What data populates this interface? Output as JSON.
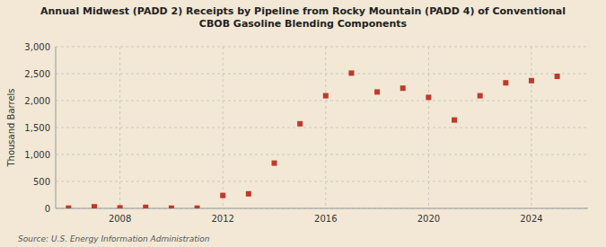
{
  "chart_data": {
    "type": "scatter",
    "title": "Annual Midwest (PADD 2) Receipts by Pipeline from Rocky Mountain (PADD 4) of Conventional\nCBOB Gasoline Blending Components",
    "ylabel": "Thousand Barrels",
    "source": "Source: U.S. Energy Information Administration",
    "x": [
      2006,
      2007,
      2008,
      2009,
      2010,
      2011,
      2012,
      2013,
      2014,
      2015,
      2016,
      2017,
      2018,
      2019,
      2020,
      2021,
      2022,
      2023,
      2024,
      2025
    ],
    "values": [
      5,
      30,
      10,
      20,
      5,
      5,
      240,
      270,
      840,
      1570,
      2090,
      2510,
      2160,
      2230,
      2060,
      1640,
      2090,
      2330,
      2370,
      2450
    ],
    "color": "#c0392b",
    "marker": "square",
    "xlim": [
      2005.5,
      2026.2
    ],
    "xticks": [
      2008,
      2012,
      2016,
      2020,
      2024
    ],
    "ylim": [
      0,
      3000
    ],
    "yticks": [
      0,
      500,
      {
        "value": 1000,
        "label": "1,000"
      },
      {
        "value": 1500,
        "label": "1,500"
      },
      {
        "value": 2000,
        "label": "2,000"
      },
      {
        "value": 2500,
        "label": "2,500"
      },
      {
        "value": 3000,
        "label": "3,000"
      }
    ],
    "grid": true
  }
}
